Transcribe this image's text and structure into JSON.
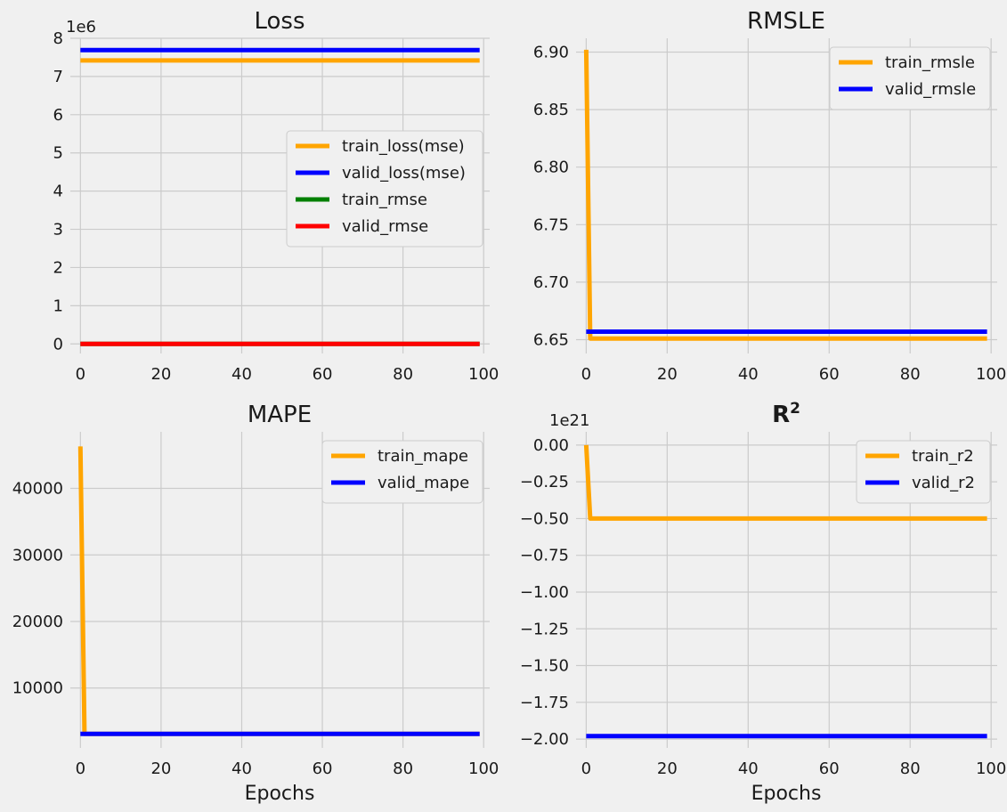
{
  "figure": {
    "background": "#f0f0f0"
  },
  "chart_data": [
    {
      "type": "line",
      "title": "Loss",
      "xlabel": "",
      "ylabel": "",
      "offset_text": "1e6",
      "xlim": [
        -2.5,
        101.5
      ],
      "ylim": [
        -0.25,
        8.0
      ],
      "xticks": [
        0,
        20,
        40,
        60,
        80,
        100
      ],
      "xtick_labels": [
        "0",
        "20",
        "40",
        "60",
        "80",
        "100"
      ],
      "yticks": [
        0,
        1,
        2,
        3,
        4,
        5,
        6,
        7,
        8
      ],
      "ytick_labels": [
        "0",
        "1",
        "2",
        "3",
        "4",
        "5",
        "6",
        "7",
        "8"
      ],
      "grid": true,
      "legend_position": "center-right",
      "series": [
        {
          "name": "train_loss(mse)",
          "color": "#ffa500",
          "x": [
            0,
            99
          ],
          "y": [
            7.42,
            7.42
          ]
        },
        {
          "name": "valid_loss(mse)",
          "color": "#0000ff",
          "x": [
            0,
            99
          ],
          "y": [
            7.69,
            7.69
          ]
        },
        {
          "name": "train_rmse",
          "color": "#008000",
          "x": [
            0,
            99
          ],
          "y": [
            0.0027,
            0.0027
          ]
        },
        {
          "name": "valid_rmse",
          "color": "#ff0000",
          "x": [
            0,
            99
          ],
          "y": [
            0.0028,
            0.0028
          ]
        }
      ]
    },
    {
      "type": "line",
      "title": "RMSLE",
      "xlabel": "",
      "ylabel": "",
      "offset_text": "",
      "xlim": [
        -2.5,
        101.5
      ],
      "ylim": [
        6.638,
        6.912
      ],
      "xticks": [
        0,
        20,
        40,
        60,
        80,
        100
      ],
      "xtick_labels": [
        "0",
        "20",
        "40",
        "60",
        "80",
        "100"
      ],
      "yticks": [
        6.65,
        6.7,
        6.75,
        6.8,
        6.85,
        6.9
      ],
      "ytick_labels": [
        "6.65",
        "6.70",
        "6.75",
        "6.80",
        "6.85",
        "6.90"
      ],
      "grid": true,
      "legend_position": "upper-right",
      "series": [
        {
          "name": "train_rmsle",
          "color": "#ffa500",
          "x": [
            0,
            1,
            99
          ],
          "y": [
            6.902,
            6.651,
            6.651
          ]
        },
        {
          "name": "valid_rmsle",
          "color": "#0000ff",
          "x": [
            0,
            99
          ],
          "y": [
            6.657,
            6.657
          ]
        }
      ]
    },
    {
      "type": "line",
      "title": "MAPE",
      "xlabel": "Epochs",
      "ylabel": "",
      "offset_text": "",
      "xlim": [
        -2.5,
        101.5
      ],
      "ylim": [
        1000,
        48500
      ],
      "xticks": [
        0,
        20,
        40,
        60,
        80,
        100
      ],
      "xtick_labels": [
        "0",
        "20",
        "40",
        "60",
        "80",
        "100"
      ],
      "yticks": [
        10000,
        20000,
        30000,
        40000
      ],
      "ytick_labels": [
        "10000",
        "20000",
        "30000",
        "40000"
      ],
      "grid": true,
      "legend_position": "upper-right",
      "series": [
        {
          "name": "train_mape",
          "color": "#ffa500",
          "x": [
            0,
            1,
            99
          ],
          "y": [
            46300,
            3100,
            3100
          ]
        },
        {
          "name": "valid_mape",
          "color": "#0000ff",
          "x": [
            0,
            99
          ],
          "y": [
            3100,
            3100
          ]
        }
      ]
    },
    {
      "type": "line",
      "title": "R",
      "title_superscript": "2",
      "xlabel": "Epochs",
      "ylabel": "",
      "offset_text": "1e21",
      "xlim": [
        -2.5,
        101.5
      ],
      "ylim": [
        -2.06,
        0.09
      ],
      "xticks": [
        0,
        20,
        40,
        60,
        80,
        100
      ],
      "xtick_labels": [
        "0",
        "20",
        "40",
        "60",
        "80",
        "100"
      ],
      "yticks": [
        0.0,
        -0.25,
        -0.5,
        -0.75,
        -1.0,
        -1.25,
        -1.5,
        -1.75,
        -2.0
      ],
      "ytick_labels": [
        "0.00",
        "−0.25",
        "−0.50",
        "−0.75",
        "−1.00",
        "−1.25",
        "−1.50",
        "−1.75",
        "−2.00"
      ],
      "grid": true,
      "legend_position": "upper-right",
      "series": [
        {
          "name": "train_r2",
          "color": "#ffa500",
          "x": [
            0,
            1,
            99
          ],
          "y": [
            0.0,
            -0.5,
            -0.5
          ]
        },
        {
          "name": "valid_r2",
          "color": "#0000ff",
          "x": [
            0,
            99
          ],
          "y": [
            -1.98,
            -1.98
          ]
        }
      ]
    }
  ]
}
